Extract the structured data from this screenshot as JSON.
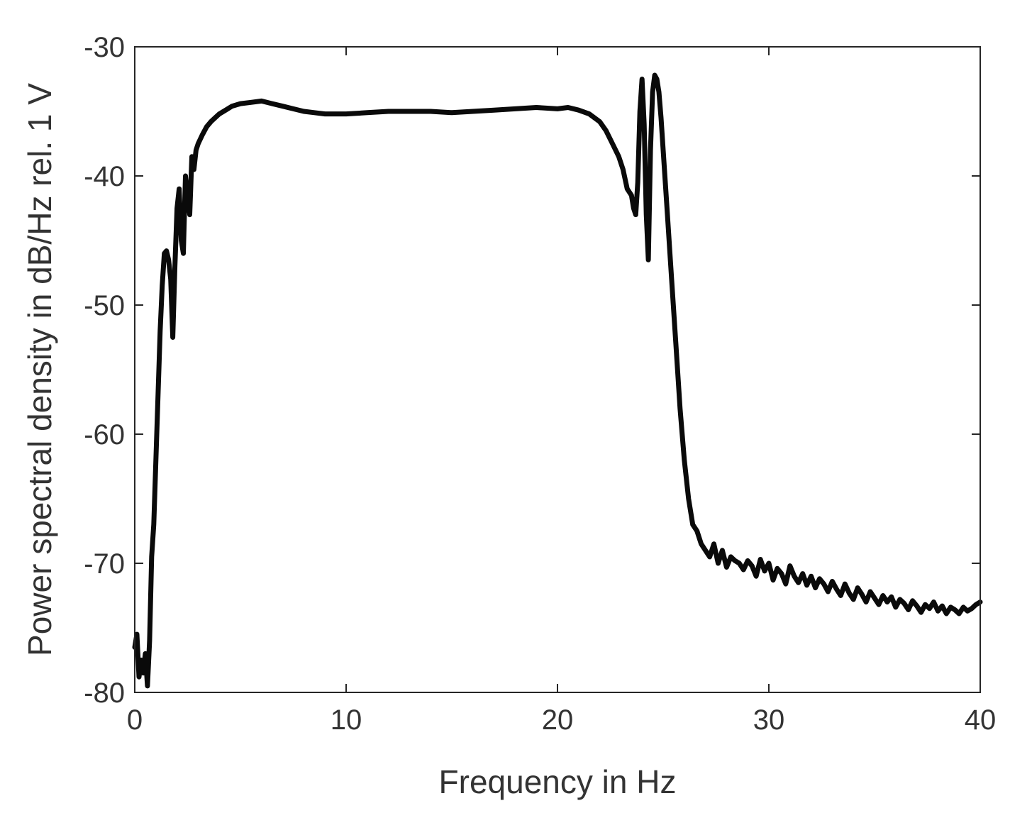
{
  "chart_data": {
    "type": "line",
    "title": "",
    "xlabel": "Frequency in Hz",
    "ylabel": "Power spectral density in dB/Hz rel. 1 V",
    "xlim": [
      0,
      40
    ],
    "ylim": [
      -80,
      -30
    ],
    "xticks": [
      0,
      10,
      20,
      30,
      40
    ],
    "yticks": [
      -80,
      -70,
      -60,
      -50,
      -40,
      -30
    ],
    "grid": false,
    "legend": "none",
    "line_color": "#0a0a0a",
    "series": [
      {
        "x": [
          0,
          0.1,
          0.2,
          0.3,
          0.4,
          0.5,
          0.6,
          0.7,
          0.8,
          0.9,
          1.0,
          1.1,
          1.2,
          1.3,
          1.4,
          1.5,
          1.6,
          1.7,
          1.8,
          1.9,
          2.0,
          2.1,
          2.2,
          2.3,
          2.4,
          2.5,
          2.6,
          2.7,
          2.8,
          2.9,
          3.0,
          3.2,
          3.4,
          3.6,
          3.8,
          4.0,
          4.3,
          4.6,
          5.0,
          5.5,
          6.0,
          6.5,
          7.0,
          7.5,
          8.0,
          8.5,
          9.0,
          9.5,
          10.0,
          11.0,
          12.0,
          13.0,
          14.0,
          15.0,
          16.0,
          17.0,
          18.0,
          19.0,
          20.0,
          20.5,
          21.0,
          21.5,
          22.0,
          22.3,
          22.6,
          22.9,
          23.1,
          23.3,
          23.5,
          23.6,
          23.7,
          23.8,
          23.9,
          24.0,
          24.1,
          24.2,
          24.3,
          24.4,
          24.5,
          24.6,
          24.7,
          24.8,
          24.9,
          25.0,
          25.2,
          25.4,
          25.6,
          25.8,
          26.0,
          26.2,
          26.4,
          26.6,
          26.8,
          27.0,
          27.2,
          27.4,
          27.6,
          27.8,
          28.0,
          28.2,
          28.4,
          28.6,
          28.8,
          29.0,
          29.2,
          29.4,
          29.6,
          29.8,
          30.0,
          30.2,
          30.4,
          30.6,
          30.8,
          31.0,
          31.2,
          31.4,
          31.6,
          31.8,
          32.0,
          32.2,
          32.4,
          32.6,
          32.8,
          33.0,
          33.2,
          33.4,
          33.6,
          33.8,
          34.0,
          34.2,
          34.4,
          34.6,
          34.8,
          35.0,
          35.2,
          35.4,
          35.6,
          35.8,
          36.0,
          36.2,
          36.4,
          36.6,
          36.8,
          37.0,
          37.2,
          37.4,
          37.6,
          37.8,
          38.0,
          38.2,
          38.4,
          38.6,
          38.8,
          39.0,
          39.2,
          39.4,
          39.6,
          39.8,
          40.0
        ],
        "y": [
          -76.5,
          -75.5,
          -78.8,
          -77.5,
          -78.5,
          -77.0,
          -79.5,
          -76.0,
          -69.5,
          -67.0,
          -62.0,
          -57.0,
          -52.0,
          -48.5,
          -46.0,
          -45.8,
          -46.5,
          -48.0,
          -52.5,
          -47.0,
          -42.5,
          -41.0,
          -45.0,
          -46.0,
          -40.0,
          -41.5,
          -43.0,
          -38.5,
          -39.5,
          -38.0,
          -37.5,
          -36.8,
          -36.2,
          -35.8,
          -35.5,
          -35.2,
          -34.9,
          -34.6,
          -34.4,
          -34.3,
          -34.2,
          -34.4,
          -34.6,
          -34.8,
          -35.0,
          -35.1,
          -35.2,
          -35.2,
          -35.2,
          -35.1,
          -35.0,
          -35.0,
          -35.0,
          -35.1,
          -35.0,
          -34.9,
          -34.8,
          -34.7,
          -34.8,
          -34.7,
          -34.9,
          -35.2,
          -35.8,
          -36.5,
          -37.5,
          -38.5,
          -39.5,
          -41.0,
          -41.5,
          -42.5,
          -43.0,
          -40.5,
          -35.0,
          -32.5,
          -36.0,
          -43.0,
          -46.5,
          -38.0,
          -33.5,
          -32.2,
          -32.5,
          -33.5,
          -35.5,
          -38.0,
          -43.0,
          -48.0,
          -53.0,
          -58.0,
          -62.0,
          -65.0,
          -67.0,
          -67.5,
          -68.5,
          -69.0,
          -69.5,
          -68.5,
          -70.0,
          -69.0,
          -70.3,
          -69.5,
          -69.8,
          -70.0,
          -70.5,
          -69.8,
          -70.2,
          -71.0,
          -69.7,
          -70.6,
          -70.0,
          -71.3,
          -70.4,
          -70.8,
          -71.6,
          -70.2,
          -71.0,
          -71.5,
          -70.8,
          -71.7,
          -71.0,
          -71.9,
          -71.2,
          -71.6,
          -72.2,
          -71.4,
          -72.0,
          -72.5,
          -71.6,
          -72.3,
          -72.8,
          -71.9,
          -72.4,
          -73.0,
          -72.2,
          -72.7,
          -73.2,
          -72.5,
          -73.0,
          -72.6,
          -73.4,
          -72.8,
          -73.1,
          -73.6,
          -72.9,
          -73.3,
          -73.8,
          -73.2,
          -73.5,
          -73.0,
          -73.7,
          -73.3,
          -73.9,
          -73.4,
          -73.6,
          -73.9,
          -73.4,
          -73.7,
          -73.5,
          -73.2,
          -73.0
        ]
      }
    ]
  }
}
